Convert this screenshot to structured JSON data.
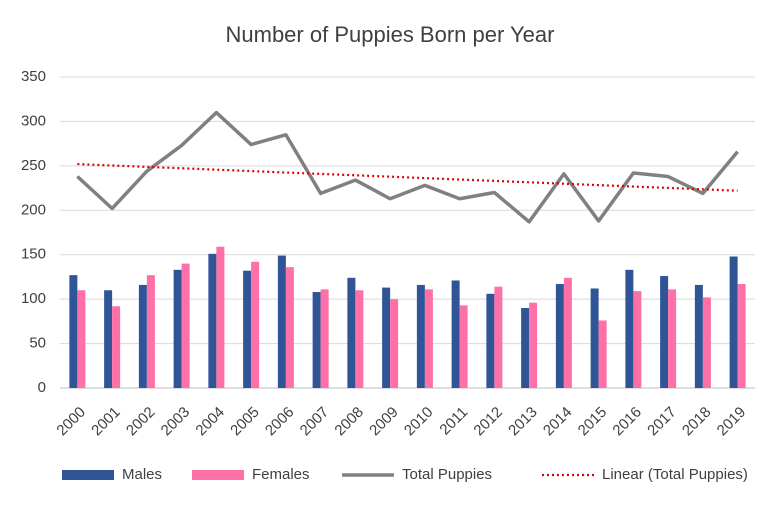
{
  "chart_data": {
    "type": "bar-line",
    "title": "Number of Puppies Born per Year",
    "categories": [
      "2000",
      "2001",
      "2002",
      "2003",
      "2004",
      "2005",
      "2006",
      "2007",
      "2008",
      "2009",
      "2010",
      "2011",
      "2012",
      "2013",
      "2014",
      "2015",
      "2016",
      "2017",
      "2018",
      "2019"
    ],
    "series": [
      {
        "name": "Males",
        "type": "bar",
        "color": "#2f5597",
        "values": [
          127,
          110,
          116,
          133,
          151,
          132,
          149,
          108,
          124,
          113,
          116,
          121,
          106,
          90,
          117,
          112,
          133,
          126,
          116,
          148
        ]
      },
      {
        "name": "Females",
        "type": "bar",
        "color": "#ff6fa8",
        "values": [
          110,
          92,
          127,
          140,
          159,
          142,
          136,
          111,
          110,
          100,
          111,
          93,
          114,
          96,
          124,
          76,
          109,
          111,
          102,
          117
        ]
      },
      {
        "name": "Total Puppies",
        "type": "line",
        "color": "#808080",
        "values": [
          238,
          202,
          244,
          273,
          310,
          274,
          285,
          219,
          234,
          213,
          228,
          213,
          220,
          187,
          241,
          188,
          242,
          238,
          219,
          266
        ]
      },
      {
        "name": "Linear (Total Puppies)",
        "type": "dotted",
        "color": "#e00000",
        "values": [
          252,
          250.4,
          248.8,
          247.3,
          245.7,
          244.1,
          242.5,
          240.9,
          239.4,
          237.8,
          236.2,
          234.6,
          233.1,
          231.5,
          229.9,
          228.3,
          226.7,
          225.2,
          223.6,
          222
        ]
      }
    ],
    "ylim": [
      0,
      350
    ],
    "yticks": [
      0,
      50,
      100,
      150,
      200,
      250,
      300,
      350
    ],
    "grid": true,
    "legend": "bottom"
  }
}
